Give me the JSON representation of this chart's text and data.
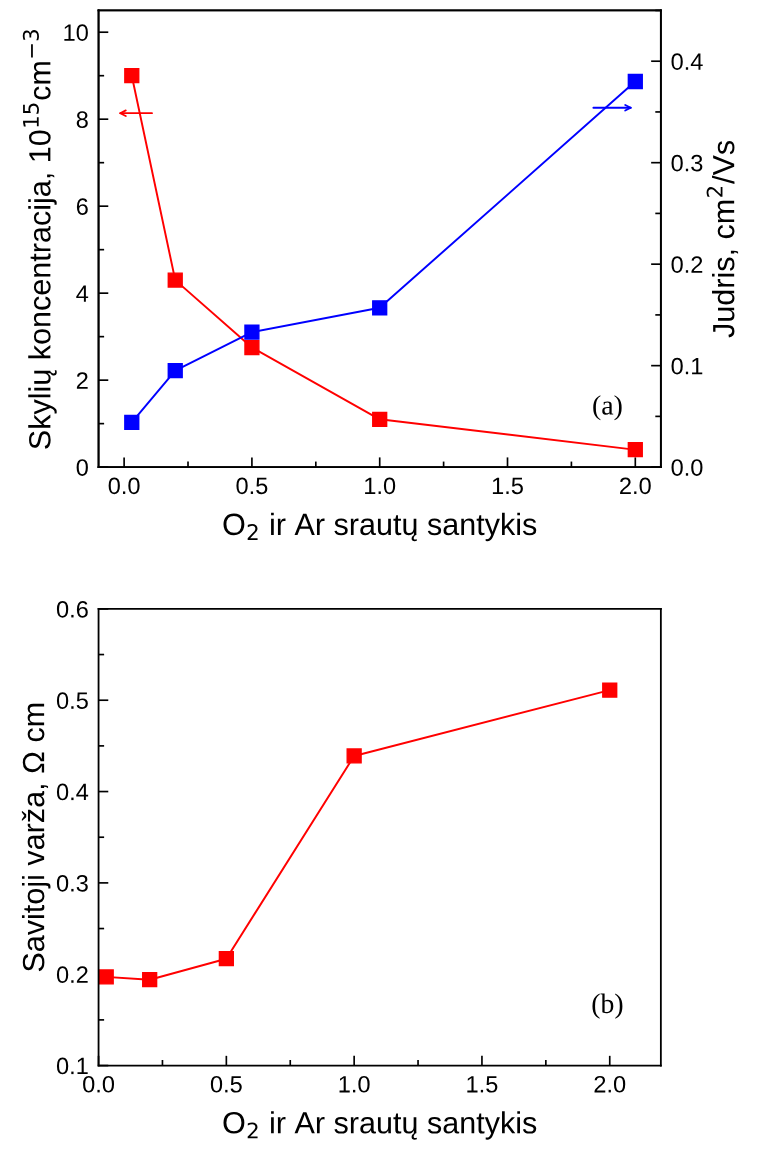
{
  "chart_data": [
    {
      "type": "line",
      "xlabel": "O$_{2}$ ir Ar srautų santykis",
      "ylabel": "Skylių koncentracija, 10$^{15}$cm$^{−3}$",
      "y2label": "Judris, cm$^{2}$/Vs",
      "xlim": [
        -0.1,
        2.1
      ],
      "xticks": [
        {
          "value": 0,
          "label": "0.0"
        },
        {
          "value": 0.5,
          "label": "0.5"
        },
        {
          "value": 1,
          "label": "1.0"
        },
        {
          "value": 1.5,
          "label": "1.5"
        },
        {
          "value": 2,
          "label": "2.0"
        }
      ],
      "ylim": [
        0,
        10.5
      ],
      "yticks": [
        0,
        2,
        4,
        6,
        8,
        10
      ],
      "y2lim": [
        0,
        0.45
      ],
      "y2ticks": [
        {
          "value": 0,
          "label": "0.0"
        },
        0.1,
        0.2,
        0.3,
        0.4
      ],
      "marker": "square",
      "line_style": "solid",
      "grid": false,
      "legend": false,
      "annotations": [
        "(a)"
      ],
      "series": [
        {
          "color": "#ff0000",
          "x": [
            0.03,
            0.2,
            0.5,
            1.0,
            2.0
          ],
          "values": [
            9.0,
            4.3,
            2.75,
            1.1,
            0.4
          ]
        },
        {
          "color": "#0000ff",
          "axis": "y2",
          "x": [
            0.03,
            0.2,
            0.5,
            1.0,
            2.0
          ],
          "values": [
            0.044,
            0.095,
            0.133,
            0.157,
            0.38
          ]
        }
      ]
    },
    {
      "type": "line",
      "xlabel": "O$_{2}$ ir Ar srautų santykis",
      "ylabel": "Savitoji varža, Ω cm",
      "xlim": [
        0,
        2.2
      ],
      "xticks": [
        {
          "value": 0,
          "label": "0.0"
        },
        {
          "value": 0.5,
          "label": "0.5"
        },
        {
          "value": 1,
          "label": "1.0"
        },
        {
          "value": 1.5,
          "label": "1.5"
        },
        {
          "value": 2,
          "label": "2.0"
        }
      ],
      "ylim": [
        0.1,
        0.6
      ],
      "yticks": [
        0.1,
        0.2,
        0.3,
        0.4,
        0.5,
        0.6
      ],
      "marker": "square",
      "line_style": "solid",
      "grid": false,
      "legend": false,
      "annotations": [
        "(b)"
      ],
      "series": [
        {
          "color": "#ff0000",
          "x": [
            0.03,
            0.2,
            0.5,
            1.0,
            2.0
          ],
          "values": [
            0.197,
            0.194,
            0.217,
            0.439,
            0.511
          ]
        }
      ]
    }
  ]
}
